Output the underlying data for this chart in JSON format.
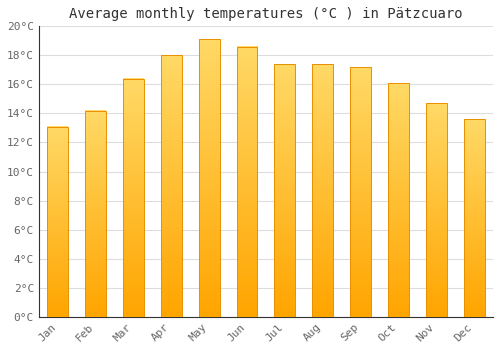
{
  "title": "Average monthly temperatures (°C ) in Pätzcuaro",
  "months": [
    "Jan",
    "Feb",
    "Mar",
    "Apr",
    "May",
    "Jun",
    "Jul",
    "Aug",
    "Sep",
    "Oct",
    "Nov",
    "Dec"
  ],
  "values": [
    13.1,
    14.2,
    16.4,
    18.0,
    19.1,
    18.6,
    17.4,
    17.4,
    17.2,
    16.1,
    14.7,
    13.6
  ],
  "bar_color_top": "#FFD966",
  "bar_color_bottom": "#FFA500",
  "bar_edge_color": "#E89000",
  "ylim": [
    0,
    20
  ],
  "ytick_step": 2,
  "background_color": "#FFFFFF",
  "grid_color": "#DDDDDD",
  "title_fontsize": 10,
  "tick_fontsize": 8,
  "tick_label_color": "#666666",
  "bar_width": 0.55
}
